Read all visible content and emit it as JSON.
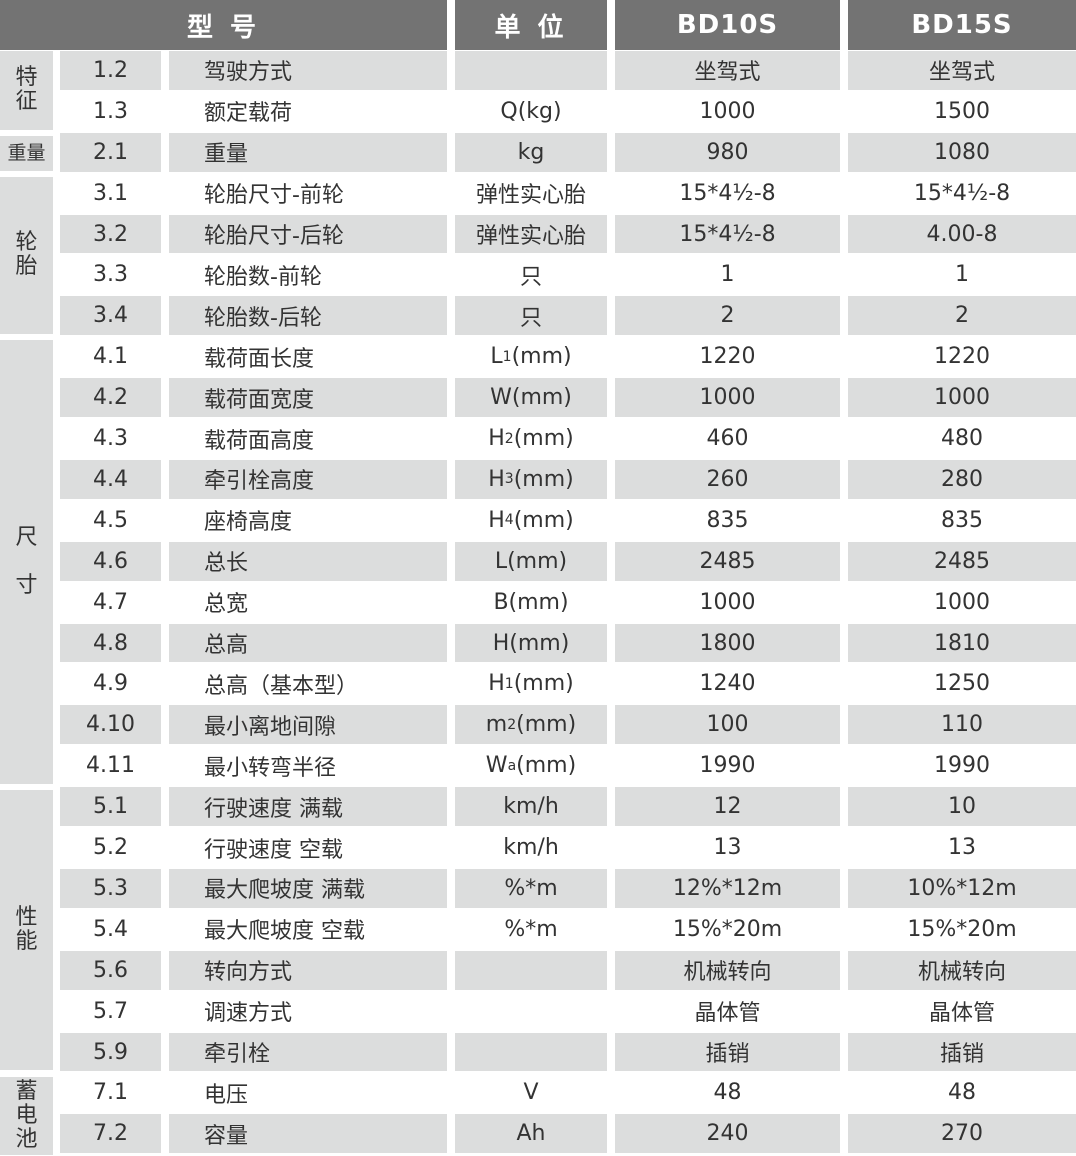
{
  "header": {
    "model": "型 号",
    "unit": "单 位",
    "col1": "BD10S",
    "col2": "BD15S"
  },
  "colors": {
    "header_bg": "#737373",
    "row_gray": "#dcdddd"
  },
  "groups": [
    {
      "label": "特\n征",
      "rows": 2
    },
    {
      "label": "重量",
      "rows": 1
    },
    {
      "label": "轮\n胎",
      "rows": 4
    },
    {
      "label": "尺\n\n寸",
      "rows": 11
    },
    {
      "label": "性\n能",
      "rows": 7
    },
    {
      "label": "蓄\n电\n池",
      "rows": 2
    }
  ],
  "rows": [
    {
      "no": "1.2",
      "name": "驾驶方式",
      "unit_pre": "",
      "unit_sub": "",
      "unit_post": "",
      "bd10s": "坐驾式",
      "bd15s": "坐驾式"
    },
    {
      "no": "1.3",
      "name": "额定载荷",
      "unit_pre": "Q(kg)",
      "unit_sub": "",
      "unit_post": "",
      "bd10s": "1000",
      "bd15s": "1500"
    },
    {
      "no": "2.1",
      "name": "重量",
      "unit_pre": "kg",
      "unit_sub": "",
      "unit_post": "",
      "bd10s": "980",
      "bd15s": "1080"
    },
    {
      "no": "3.1",
      "name": "轮胎尺寸-前轮",
      "unit_pre": "弹性实心胎",
      "unit_sub": "",
      "unit_post": "",
      "bd10s": "15*4½-8",
      "bd15s": "15*4½-8"
    },
    {
      "no": "3.2",
      "name": "轮胎尺寸-后轮",
      "unit_pre": "弹性实心胎",
      "unit_sub": "",
      "unit_post": "",
      "bd10s": "15*4½-8",
      "bd15s": "4.00-8"
    },
    {
      "no": "3.3",
      "name": "轮胎数-前轮",
      "unit_pre": "只",
      "unit_sub": "",
      "unit_post": "",
      "bd10s": "1",
      "bd15s": "1"
    },
    {
      "no": "3.4",
      "name": "轮胎数-后轮",
      "unit_pre": "只",
      "unit_sub": "",
      "unit_post": "",
      "bd10s": "2",
      "bd15s": "2"
    },
    {
      "no": "4.1",
      "name": "载荷面长度",
      "unit_pre": "L",
      "unit_sub": "1",
      "unit_post": "(mm)",
      "bd10s": "1220",
      "bd15s": "1220"
    },
    {
      "no": "4.2",
      "name": "载荷面宽度",
      "unit_pre": "W(mm)",
      "unit_sub": "",
      "unit_post": "",
      "bd10s": "1000",
      "bd15s": "1000"
    },
    {
      "no": "4.3",
      "name": "载荷面高度",
      "unit_pre": "H",
      "unit_sub": "2",
      "unit_post": "(mm)",
      "bd10s": "460",
      "bd15s": "480"
    },
    {
      "no": "4.4",
      "name": "牵引栓高度",
      "unit_pre": "H",
      "unit_sub": "3",
      "unit_post": "(mm)",
      "bd10s": "260",
      "bd15s": "280"
    },
    {
      "no": "4.5",
      "name": "座椅高度",
      "unit_pre": "H",
      "unit_sub": "4",
      "unit_post": "(mm)",
      "bd10s": "835",
      "bd15s": "835"
    },
    {
      "no": "4.6",
      "name": "总长",
      "unit_pre": "L(mm)",
      "unit_sub": "",
      "unit_post": "",
      "bd10s": "2485",
      "bd15s": "2485"
    },
    {
      "no": "4.7",
      "name": "总宽",
      "unit_pre": "B(mm)",
      "unit_sub": "",
      "unit_post": "",
      "bd10s": "1000",
      "bd15s": "1000"
    },
    {
      "no": "4.8",
      "name": "总高",
      "unit_pre": "H(mm)",
      "unit_sub": "",
      "unit_post": "",
      "bd10s": "1800",
      "bd15s": "1810"
    },
    {
      "no": "4.9",
      "name": "总高（基本型）",
      "unit_pre": "H",
      "unit_sub": "1",
      "unit_post": "(mm)",
      "bd10s": "1240",
      "bd15s": "1250"
    },
    {
      "no": "4.10",
      "name": "最小离地间隙",
      "unit_pre": "m",
      "unit_sub": "2",
      "unit_post": "(mm)",
      "bd10s": "100",
      "bd15s": "110"
    },
    {
      "no": "4.11",
      "name": "最小转弯半径",
      "unit_pre": "W",
      "unit_sub": "a",
      "unit_post": "(mm)",
      "bd10s": "1990",
      "bd15s": "1990"
    },
    {
      "no": "5.1",
      "name": "行驶速度 满载",
      "unit_pre": "km/h",
      "unit_sub": "",
      "unit_post": "",
      "bd10s": "12",
      "bd15s": "10"
    },
    {
      "no": "5.2",
      "name": "行驶速度 空载",
      "unit_pre": "km/h",
      "unit_sub": "",
      "unit_post": "",
      "bd10s": "13",
      "bd15s": "13"
    },
    {
      "no": "5.3",
      "name": "最大爬坡度 满载",
      "unit_pre": "%*m",
      "unit_sub": "",
      "unit_post": "",
      "bd10s": "12%*12m",
      "bd15s": "10%*12m"
    },
    {
      "no": "5.4",
      "name": "最大爬坡度 空载",
      "unit_pre": "%*m",
      "unit_sub": "",
      "unit_post": "",
      "bd10s": "15%*20m",
      "bd15s": "15%*20m"
    },
    {
      "no": "5.6",
      "name": "转向方式",
      "unit_pre": "",
      "unit_sub": "",
      "unit_post": "",
      "bd10s": "机械转向",
      "bd15s": "机械转向"
    },
    {
      "no": "5.7",
      "name": "调速方式",
      "unit_pre": "",
      "unit_sub": "",
      "unit_post": "",
      "bd10s": "晶体管",
      "bd15s": "晶体管"
    },
    {
      "no": "5.9",
      "name": "牵引栓",
      "unit_pre": "",
      "unit_sub": "",
      "unit_post": "",
      "bd10s": "插销",
      "bd15s": "插销"
    },
    {
      "no": "7.1",
      "name": "电压",
      "unit_pre": "V",
      "unit_sub": "",
      "unit_post": "",
      "bd10s": "48",
      "bd15s": "48"
    },
    {
      "no": "7.2",
      "name": "容量",
      "unit_pre": "Ah",
      "unit_sub": "",
      "unit_post": "",
      "bd10s": "240",
      "bd15s": "270"
    }
  ]
}
